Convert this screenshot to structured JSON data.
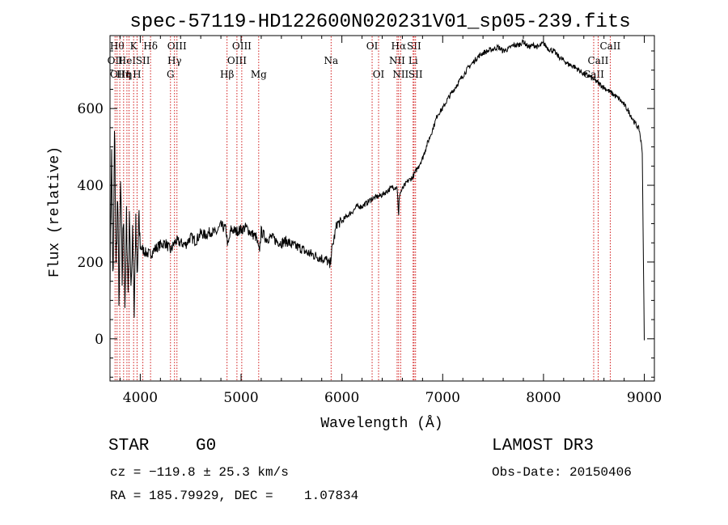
{
  "chart_data": {
    "type": "line",
    "title": "spec-57119-HD122600N020231V01_sp05-239.fits",
    "xlabel": "Wavelength (Å)",
    "ylabel": "Flux (relative)",
    "xlim": [
      3700,
      9100
    ],
    "ylim": [
      -110,
      790
    ],
    "xticks": [
      4000,
      5000,
      6000,
      7000,
      8000,
      9000
    ],
    "yticks": [
      0,
      200,
      400,
      600
    ],
    "grid": false,
    "line_color": "#000000",
    "marker_color": "#cc0000",
    "series": [
      {
        "name": "flux",
        "x": [
          3700,
          3715,
          3730,
          3745,
          3760,
          3775,
          3790,
          3805,
          3820,
          3835,
          3850,
          3865,
          3880,
          3895,
          3910,
          3925,
          3940,
          3955,
          3970,
          3985,
          4000,
          4050,
          4100,
          4150,
          4200,
          4250,
          4300,
          4350,
          4400,
          4450,
          4500,
          4550,
          4600,
          4650,
          4700,
          4750,
          4800,
          4850,
          4870,
          4900,
          4950,
          5000,
          5050,
          5100,
          5150,
          5180,
          5200,
          5250,
          5300,
          5350,
          5400,
          5450,
          5500,
          5550,
          5600,
          5650,
          5700,
          5750,
          5800,
          5850,
          5880,
          5900,
          5950,
          6000,
          6050,
          6100,
          6150,
          6200,
          6250,
          6300,
          6350,
          6400,
          6450,
          6500,
          6550,
          6563,
          6570,
          6600,
          6650,
          6700,
          6750,
          6800,
          6850,
          6900,
          6950,
          7000,
          7050,
          7100,
          7150,
          7200,
          7250,
          7300,
          7350,
          7400,
          7450,
          7500,
          7550,
          7600,
          7650,
          7700,
          7750,
          7800,
          7850,
          7900,
          7950,
          8000,
          8050,
          8100,
          8150,
          8200,
          8250,
          8300,
          8350,
          8400,
          8450,
          8500,
          8550,
          8600,
          8650,
          8700,
          8750,
          8800,
          8850,
          8900,
          8950,
          8980,
          9000
        ],
        "y": [
          150,
          500,
          100,
          560,
          180,
          380,
          80,
          420,
          150,
          350,
          60,
          330,
          120,
          340,
          90,
          320,
          70,
          300,
          140,
          310,
          240,
          225,
          220,
          235,
          245,
          250,
          230,
          255,
          250,
          245,
          265,
          255,
          275,
          270,
          280,
          275,
          295,
          285,
          240,
          285,
          280,
          285,
          290,
          275,
          265,
          225,
          280,
          260,
          265,
          255,
          250,
          255,
          245,
          240,
          235,
          225,
          220,
          215,
          210,
          205,
          190,
          230,
          300,
          305,
          320,
          330,
          345,
          345,
          355,
          365,
          370,
          375,
          385,
          395,
          395,
          310,
          375,
          390,
          410,
          420,
          445,
          470,
          510,
          545,
          585,
          600,
          625,
          645,
          665,
          685,
          705,
          720,
          735,
          745,
          750,
          755,
          760,
          750,
          755,
          765,
          765,
          775,
          760,
          765,
          760,
          770,
          755,
          750,
          735,
          725,
          715,
          710,
          700,
          690,
          685,
          675,
          665,
          655,
          645,
          635,
          625,
          610,
          590,
          565,
          545,
          490,
          -5
        ]
      }
    ],
    "line_markers": [
      {
        "w": 3750,
        "label": "OII",
        "row": 1
      },
      {
        "w": 3770,
        "label": "Hθ",
        "row": 0
      },
      {
        "w": 3797,
        "label": "OIII",
        "row": 2
      },
      {
        "w": 3835,
        "label": "Hη",
        "row": 2
      },
      {
        "w": 3868,
        "label": "HeI",
        "row": 1
      },
      {
        "w": 3889,
        "label": "η",
        "row": 2
      },
      {
        "w": 3934,
        "label": "K",
        "row": 0
      },
      {
        "w": 3968,
        "label": "H",
        "row": 2
      },
      {
        "w": 4026,
        "label": "SII",
        "row": 1
      },
      {
        "w": 4102,
        "label": "Hδ",
        "row": 0
      },
      {
        "w": 4300,
        "label": "G",
        "row": 2
      },
      {
        "w": 4340,
        "label": "Hγ",
        "row": 1
      },
      {
        "w": 4364,
        "label": "OIII",
        "row": 0
      },
      {
        "w": 4861,
        "label": "Hβ",
        "row": 2
      },
      {
        "w": 4959,
        "label": "OIII",
        "row": 1
      },
      {
        "w": 5007,
        "label": "OIII",
        "row": 0
      },
      {
        "w": 5175,
        "label": "Mg",
        "row": 2
      },
      {
        "w": 5893,
        "label": "Na",
        "row": 1
      },
      {
        "w": 6300,
        "label": "OI",
        "row": 0
      },
      {
        "w": 6364,
        "label": "OI",
        "row": 2
      },
      {
        "w": 6548,
        "label": "NII",
        "row": 1
      },
      {
        "w": 6563,
        "label": "Hα",
        "row": 0
      },
      {
        "w": 6583,
        "label": "NII",
        "row": 2
      },
      {
        "w": 6707,
        "label": "Li",
        "row": 1
      },
      {
        "w": 6716,
        "label": "SII",
        "row": 0
      },
      {
        "w": 6731,
        "label": "SII",
        "row": 2
      },
      {
        "w": 8498,
        "label": "CaII",
        "row": 2
      },
      {
        "w": 8542,
        "label": "CaII",
        "row": 1
      },
      {
        "w": 8662,
        "label": "CaII",
        "row": 0
      }
    ]
  },
  "info": {
    "class_label": "STAR",
    "subclass": "G0",
    "survey": "LAMOST DR3",
    "cz": "cz = −119.8 ± 25.3 km/s",
    "obs_date": "Obs-Date: 20150406",
    "coords": "RA = 185.79929, DEC =    1.07834"
  }
}
